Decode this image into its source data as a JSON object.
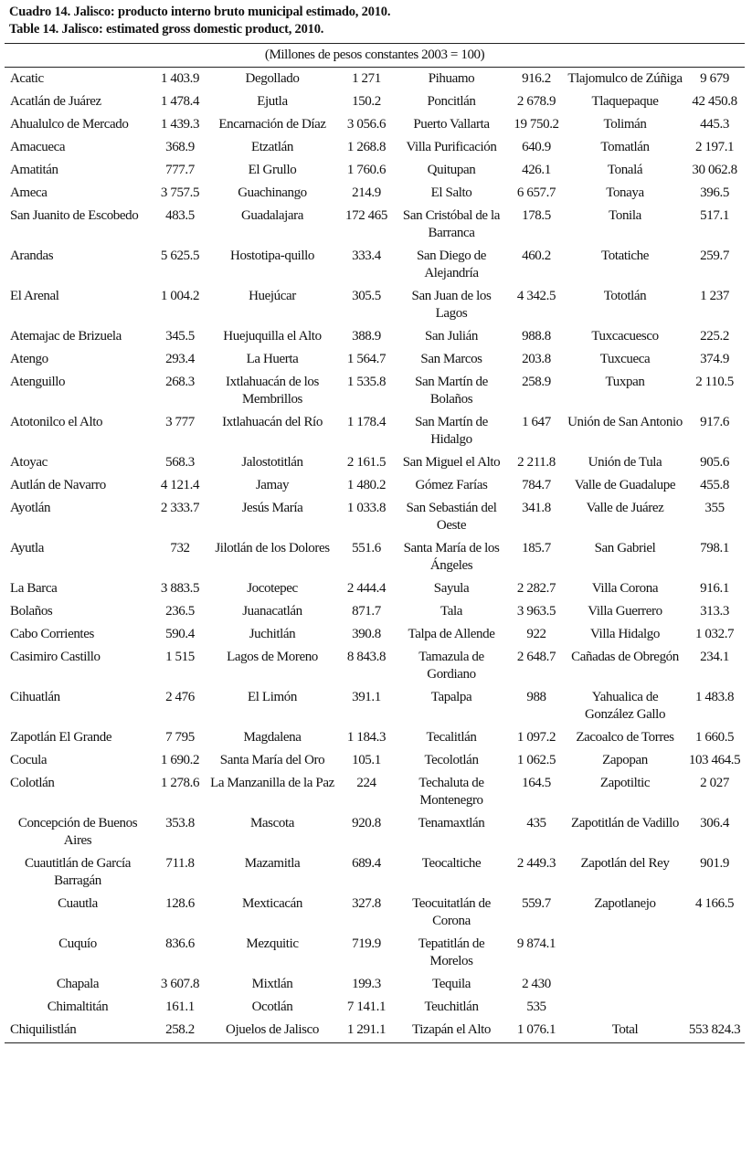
{
  "title_es": "Cuadro 14. Jalisco: producto interno bruto municipal estimado, 2010.",
  "title_en": "Table 14. Jalisco: estimated gross domestic product, 2010.",
  "unit_header": "(Millones de pesos constantes 2003 = 100)",
  "rows": [
    [
      "Acatic",
      "1 403.9",
      "Degollado",
      "1 271",
      "Pihuamo",
      "916.2",
      "Tlajomulco de Zúñiga",
      "9 679"
    ],
    [
      "Acatlán de Juárez",
      "1 478.4",
      "Ejutla",
      "150.2",
      "Poncitlán",
      "2 678.9",
      "Tlaquepaque",
      "42 450.8"
    ],
    [
      "Ahualulco de Mercado",
      "1 439.3",
      "Encarnación de Díaz",
      "3 056.6",
      "Puerto Vallarta",
      "19 750.2",
      "Tolimán",
      "445.3"
    ],
    [
      "Amacueca",
      "368.9",
      "Etzatlán",
      "1 268.8",
      "Villa Purificación",
      "640.9",
      "Tomatlán",
      "2 197.1"
    ],
    [
      "Amatitán",
      "777.7",
      "El Grullo",
      "1 760.6",
      "Quitupan",
      "426.1",
      "Tonalá",
      "30 062.8"
    ],
    [
      "Ameca",
      "3 757.5",
      "Guachinango",
      "214.9",
      "El Salto",
      "6 657.7",
      "Tonaya",
      "396.5"
    ],
    [
      "San Juanito de Escobedo",
      "483.5",
      "Guadalajara",
      "172 465",
      "San Cristóbal de la Barranca",
      "178.5",
      "Tonila",
      "517.1"
    ],
    [
      "Arandas",
      "5 625.5",
      "Hostotipa-quillo",
      "333.4",
      "San Diego de Alejandría",
      "460.2",
      "Totatiche",
      "259.7"
    ],
    [
      "El Arenal",
      "1 004.2",
      "Huejúcar",
      "305.5",
      "San Juan de los Lagos",
      "4 342.5",
      "Tototlán",
      "1 237"
    ],
    [
      "Atemajac de Brizuela",
      "345.5",
      "Huejuquilla el Alto",
      "388.9",
      "San Julián",
      "988.8",
      "Tuxcacuesco",
      "225.2"
    ],
    [
      "Atengo",
      "293.4",
      "La Huerta",
      "1 564.7",
      "San Marcos",
      "203.8",
      "Tuxcueca",
      "374.9"
    ],
    [
      "Atenguillo",
      "268.3",
      "Ixtlahuacán de los Membrillos",
      "1 535.8",
      "San Martín de Bolaños",
      "258.9",
      "Tuxpan",
      "2 110.5"
    ],
    [
      "Atotonilco el Alto",
      "3 777",
      "Ixtlahuacán  del Río",
      "1 178.4",
      "San Martín de Hidalgo",
      "1 647",
      "Unión de San Antonio",
      "917.6"
    ],
    [
      "Atoyac",
      "568.3",
      "Jalostotitlán",
      "2 161.5",
      "San Miguel el Alto",
      "2 211.8",
      "Unión de Tula",
      "905.6"
    ],
    [
      "Autlán de Navarro",
      "4 121.4",
      "Jamay",
      "1 480.2",
      "Gómez Farías",
      "784.7",
      "Valle de Guadalupe",
      "455.8"
    ],
    [
      "Ayotlán",
      "2 333.7",
      "Jesús María",
      "1 033.8",
      "San Sebastián del Oeste",
      "341.8",
      "Valle de Juárez",
      "355"
    ],
    [
      "Ayutla",
      "732",
      "Jilotlán de los Dolores",
      "551.6",
      "Santa María de los Ángeles",
      "185.7",
      "San Gabriel",
      "798.1"
    ],
    [
      "La Barca",
      "3 883.5",
      "Jocotepec",
      "2 444.4",
      "Sayula",
      "2 282.7",
      "Villa Corona",
      "916.1"
    ],
    [
      "Bolaños",
      "236.5",
      "Juanacatlán",
      "871.7",
      "Tala",
      "3 963.5",
      "Villa Guerrero",
      "313.3"
    ],
    [
      "Cabo Corrientes",
      "590.4",
      "Juchitlán",
      "390.8",
      "Talpa de Allende",
      "922",
      "Villa Hidalgo",
      "1 032.7"
    ],
    [
      "Casimiro Castillo",
      "1 515",
      "Lagos de Moreno",
      "8 843.8",
      "Tamazula de Gordiano",
      "2 648.7",
      "Cañadas de Obregón",
      "234.1"
    ],
    [
      "Cihuatlán",
      "2 476",
      "El Limón",
      "391.1",
      "Tapalpa",
      "988",
      "Yahualica de González Gallo",
      "1 483.8"
    ],
    [
      "Zapotlán El Grande",
      "7 795",
      "Magdalena",
      "1 184.3",
      "Tecalitlán",
      "1 097.2",
      "Zacoalco de Torres",
      "1 660.5"
    ],
    [
      "Cocula",
      "1 690.2",
      "Santa María del Oro",
      "105.1",
      "Tecolotlán",
      "1 062.5",
      "Zapopan",
      "103 464.5"
    ],
    [
      "Colotlán",
      "1 278.6",
      "La Manzanilla  de la Paz",
      "224",
      "Techaluta de Montenegro",
      "164.5",
      "Zapotiltic",
      "2 027"
    ],
    [
      "Concepción de Buenos Aires",
      "353.8",
      "Mascota",
      "920.8",
      "Tenamaxtlán",
      "435",
      "Zapotitlán de Vadillo",
      "306.4"
    ],
    [
      "Cuautitlán de García Barragán",
      "711.8",
      "Mazamitla",
      "689.4",
      "Teocaltiche",
      "2 449.3",
      "Zapotlán del Rey",
      "901.9"
    ],
    [
      "Cuautla",
      "128.6",
      "Mexticacán",
      "327.8",
      "Teocuitatlán de Corona",
      "559.7",
      "Zapotlanejo",
      "4 166.5"
    ],
    [
      "Cuquío",
      "836.6",
      "Mezquitic",
      "719.9",
      "Tepatitlán de Morelos",
      "9 874.1",
      "",
      ""
    ],
    [
      "Chapala",
      "3 607.8",
      "Mixtlán",
      "199.3",
      "Tequila",
      "2 430",
      "",
      ""
    ],
    [
      "Chimaltitán",
      "161.1",
      "Ocotlán",
      "7 141.1",
      "Teuchitlán",
      "535",
      "",
      ""
    ],
    [
      "Chiquilistlán",
      "258.2",
      "Ojuelos de Jalisco",
      "1 291.1",
      "Tizapán el Alto",
      "1 076.1",
      "Total",
      "553 824.3"
    ]
  ]
}
